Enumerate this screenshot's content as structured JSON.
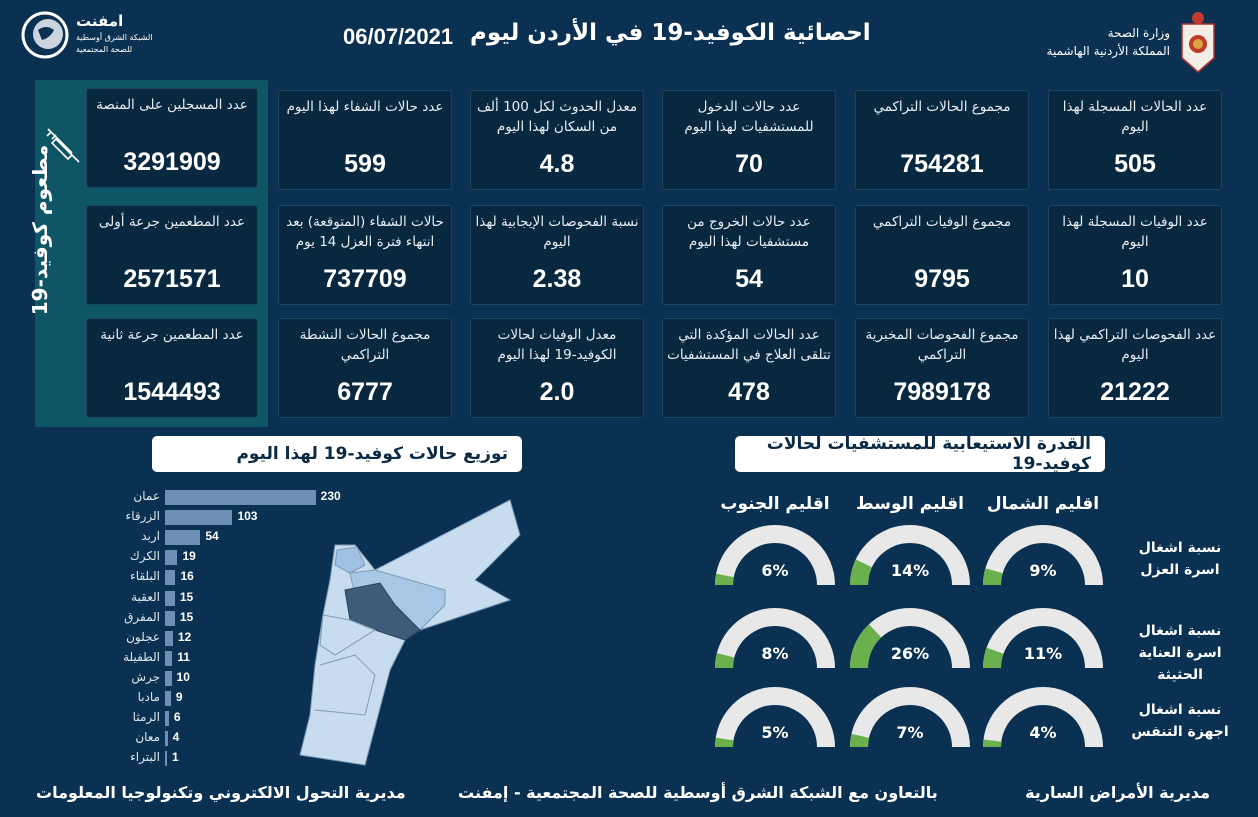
{
  "header": {
    "title": "احصائية الكوفيد-19 في الأردن ليوم",
    "date": "06/07/2021",
    "ministry_line1": "وزارة الصحة",
    "ministry_line2": "المملكة الأردنية الهاشمية",
    "emphnet_name": "امفنت",
    "emphnet_line1": "الشبكة الشرق أوسطية",
    "emphnet_line2": "للصحة المجتمعية"
  },
  "vaccine": {
    "title": "مطعوم كوفيد-19",
    "icon": "syringe-icon",
    "cards": [
      {
        "label": "عدد المسجلين على المنصة",
        "value": "3291909"
      },
      {
        "label": "عدد المطعمين جرعة أولى",
        "value": "2571571"
      },
      {
        "label": "عدد المطعمين جرعة ثانية",
        "value": "1544493"
      }
    ]
  },
  "stats": [
    {
      "label": "عدد الحالات المسجلة لهذا اليوم",
      "value": "505"
    },
    {
      "label": "مجموع الحالات التراكمي",
      "value": "754281"
    },
    {
      "label": "عدد حالات الدخول للمستشفيات لهذا اليوم",
      "value": "70"
    },
    {
      "label": "معدل الحدوث لكل 100 ألف من السكان لهذا اليوم",
      "value": "4.8"
    },
    {
      "label": "عدد حالات الشفاء لهذا اليوم",
      "value": "599"
    },
    {
      "label": "عدد الوفيات المسجلة لهذا اليوم",
      "value": "10"
    },
    {
      "label": "مجموع الوفيات التراكمي",
      "value": "9795"
    },
    {
      "label": "عدد حالات الخروج من مستشفيات لهذا اليوم",
      "value": "54"
    },
    {
      "label": "نسبة الفحوصات الإيجابية لهذا اليوم",
      "value": "2.38"
    },
    {
      "label": "حالات الشفاء (المتوقعة) بعد انتهاء فترة العزل 14 يوم",
      "value": "737709"
    },
    {
      "label": "عدد الفحوصات التراكمي لهذا اليوم",
      "value": "21222"
    },
    {
      "label": "مجموع الفحوصات المخبرية التراكمي",
      "value": "7989178"
    },
    {
      "label": "عدد الحالات المؤكدة التي تتلقى العلاج في المستشفيات",
      "value": "478"
    },
    {
      "label": "معدل الوفيات لحالات الكوفيد-19 لهذا اليوم",
      "value": "2.0"
    },
    {
      "label": "مجموع الحالات النشطة التراكمي",
      "value": "6777"
    }
  ],
  "distribution": {
    "title": "توزيع حالات كوفيد-19 لهذا اليوم",
    "bar_color": "#6d8fb6",
    "chart_data": {
      "type": "bar",
      "orientation": "horizontal",
      "categories": [
        "عمان",
        "الزرقاء",
        "اربد",
        "الكرك",
        "البلقاء",
        "العقبة",
        "المفرق",
        "عجلون",
        "الطفيلة",
        "جرش",
        "مادبا",
        "الرمثا",
        "معان",
        "البتراء"
      ],
      "values": [
        230,
        103,
        54,
        19,
        16,
        15,
        15,
        12,
        11,
        10,
        9,
        6,
        4,
        1
      ]
    }
  },
  "capacity": {
    "title": "القدرة الاستيعابية للمستشفيات لحالات كوفيد-19",
    "fill_color": "#6ab04c",
    "track_color": "#e8e8e8",
    "regions": [
      "اقليم الشمال",
      "اقليم الوسط",
      "اقليم الجنوب"
    ],
    "rows": [
      {
        "label": "نسبة اشغال اسرة العزل",
        "values": [
          9,
          14,
          6
        ]
      },
      {
        "label": "نسبة اشغال اسرة العناية الحثيثة",
        "values": [
          11,
          26,
          8
        ]
      },
      {
        "label": "نسبة اشغال اجهزة التنفس",
        "values": [
          4,
          7,
          5
        ]
      }
    ]
  },
  "footer": {
    "right": "مديرية الأمراض السارية",
    "center": "بالتعاون مع الشبكة الشرق أوسطية للصحة المجتمعية - إمفنت",
    "left": "مديرية التحول الالكتروني وتكنولوجيا المعلومات"
  }
}
